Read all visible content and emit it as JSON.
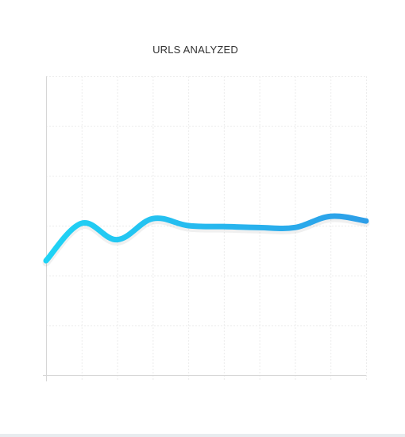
{
  "chart_data": {
    "type": "line",
    "title": "URLS ANALYZED",
    "xlabel": "",
    "ylabel": "",
    "x": [
      0,
      1,
      2,
      3,
      4,
      5,
      6,
      7,
      8,
      9
    ],
    "ylim": [
      0,
      6.4
    ],
    "grid": true,
    "legend": "none",
    "series": [
      {
        "values": [
          2.45,
          3.25,
          2.9,
          3.35,
          3.2,
          3.18,
          3.16,
          3.16,
          3.4,
          3.3
        ],
        "color_start": "#1fd3f5",
        "color_end": "#2d9ee8"
      }
    ]
  }
}
